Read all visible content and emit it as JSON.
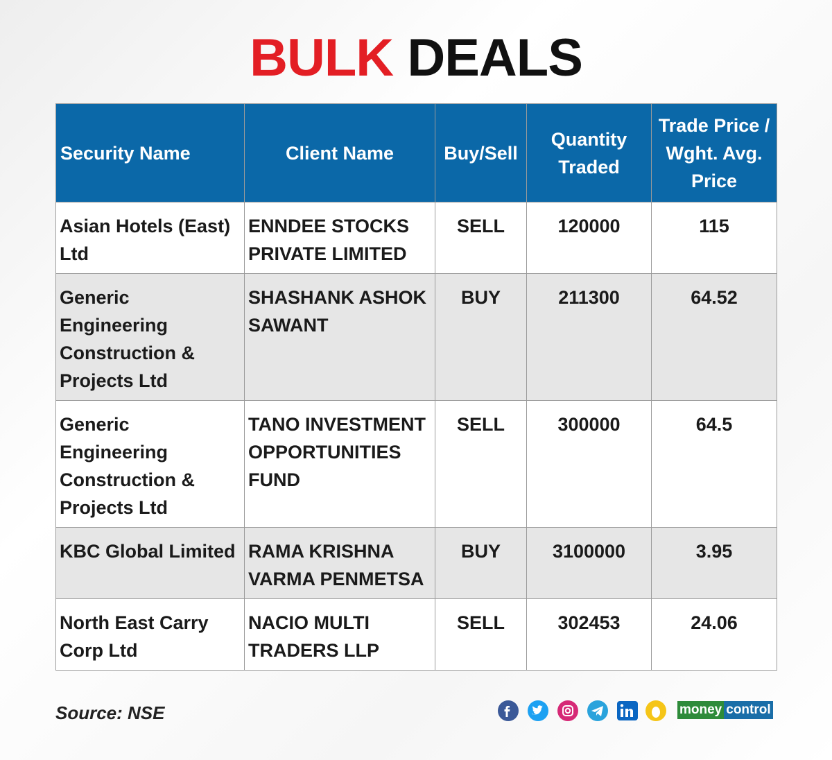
{
  "title": {
    "part1": "BULK",
    "part2": "DEALS"
  },
  "table": {
    "headers": [
      "Security Name",
      "Client Name",
      "Buy/Sell",
      "Quantity Traded",
      "Trade Price / Wght. Avg. Price"
    ],
    "rows": [
      [
        "Asian Hotels (East) Ltd",
        "ENNDEE STOCKS PRIVATE LIMITED",
        "SELL",
        "120000",
        "115"
      ],
      [
        "Generic Engineering Construction & Projects Ltd",
        "SHASHANK ASHOK SAWANT",
        "BUY",
        "211300",
        "64.52"
      ],
      [
        "Generic Engineering Construction & Projects Ltd",
        "TANO INVESTMENT OPPORTUNITIES FUND",
        "SELL",
        "300000",
        "64.5"
      ],
      [
        "KBC Global Limited",
        "RAMA KRISHNA VARMA PENMETSA",
        "BUY",
        "3100000",
        "3.95"
      ],
      [
        "North East Carry Corp Ltd",
        "NACIO MULTI TRADERS LLP",
        "SELL",
        "302453",
        "24.06"
      ]
    ]
  },
  "footer": {
    "source": "Source: NSE",
    "logo": {
      "part1": "money",
      "part2": "control"
    }
  }
}
